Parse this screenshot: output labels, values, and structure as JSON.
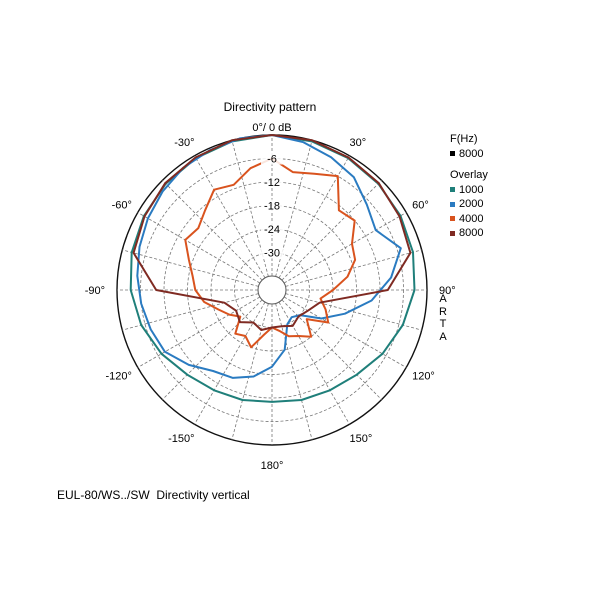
{
  "chart_data": {
    "type": "polar",
    "title": "Directivity pattern",
    "top_label": "0°/ 0 dB",
    "radial_unit": "dB",
    "radial_range": [
      -36,
      0
    ],
    "radial_ticks": [
      "-6",
      "-12",
      "-18",
      "-24",
      "-30"
    ],
    "angle_labels": [
      {
        "deg": 30,
        "text": "30°"
      },
      {
        "deg": 60,
        "text": "60°"
      },
      {
        "deg": 90,
        "text": "90°"
      },
      {
        "deg": 120,
        "text": "120°"
      },
      {
        "deg": 150,
        "text": "150°"
      },
      {
        "deg": 180,
        "text": "180°"
      },
      {
        "deg": -150,
        "text": "-150°"
      },
      {
        "deg": -120,
        "text": "-120°"
      },
      {
        "deg": -90,
        "text": "-90°"
      },
      {
        "deg": -60,
        "text": "-60°"
      },
      {
        "deg": -30,
        "text": "-30°"
      }
    ],
    "legend": {
      "freq_header": "F(Hz)",
      "freq_entry": {
        "label": "8000",
        "color": "#000000"
      },
      "overlay_header": "Overlay",
      "overlay_entries": [
        {
          "label": "1000",
          "color": "#1f7f7a"
        },
        {
          "label": "2000",
          "color": "#2a7bc1"
        },
        {
          "label": "4000",
          "color": "#d9531e"
        },
        {
          "label": "8000",
          "color": "#7f2a22"
        }
      ]
    },
    "series": [
      {
        "name": "1000",
        "color": "#1f7f7a",
        "angles": [
          0,
          15,
          30,
          45,
          60,
          75,
          90,
          105,
          120,
          135,
          150,
          165,
          180,
          195,
          210,
          225,
          240,
          255,
          270,
          285,
          300,
          315,
          330,
          345
        ],
        "values": [
          0,
          -0.3,
          -0.7,
          -1.2,
          -1.7,
          -2.3,
          -3.2,
          -5,
          -7,
          -9,
          -10,
          -10.5,
          -11,
          -10.5,
          -10,
          -9,
          -7,
          -5,
          -3.5,
          -2.5,
          -1.8,
          -1.2,
          -0.7,
          -0.3
        ]
      },
      {
        "name": "2000",
        "color": "#2a7bc1",
        "angles": [
          0,
          12,
          24,
          36,
          48,
          60,
          72,
          84,
          96,
          108,
          120,
          132,
          144,
          156,
          168,
          180,
          192,
          204,
          216,
          228,
          240,
          252,
          264,
          276,
          288,
          300,
          312,
          324,
          336,
          348
        ],
        "values": [
          0,
          -1,
          -2.5,
          -4,
          -7,
          -9,
          -5,
          -9,
          -14,
          -20,
          -25,
          -30,
          -31,
          -30,
          -24,
          -20,
          -17,
          -15,
          -14,
          -11,
          -8,
          -7,
          -6,
          -5,
          -4,
          -3,
          -2,
          -1,
          -0.5,
          0
        ]
      },
      {
        "name": "4000",
        "color": "#d9531e",
        "angles": [
          0,
          10,
          20,
          30,
          40,
          50,
          60,
          70,
          80,
          90,
          100,
          110,
          120,
          130,
          140,
          150,
          160,
          170,
          180,
          190,
          200,
          210,
          220,
          230,
          240,
          250,
          260,
          270,
          280,
          290,
          300,
          310,
          320,
          330,
          340,
          350
        ],
        "values": [
          -6,
          -9,
          -8,
          -6,
          -13,
          -12,
          -16,
          -17,
          -20,
          -24,
          -27,
          -25,
          -23,
          -28,
          -24,
          -26,
          -27,
          -29,
          -30,
          -28,
          -24,
          -26,
          -25,
          -29,
          -27,
          -25,
          -22,
          -20,
          -19,
          -17,
          -14,
          -15,
          -13,
          -10,
          -11,
          -8
        ]
      },
      {
        "name": "8000",
        "color": "#7f2a22",
        "angles": [
          0,
          15,
          30,
          45,
          60,
          75,
          90,
          105,
          120,
          135,
          150,
          165,
          180,
          195,
          210,
          225,
          240,
          255,
          270,
          285,
          300,
          315,
          330,
          345
        ],
        "values": [
          0,
          0,
          -0.5,
          -1,
          -2,
          -3,
          -10,
          -27,
          -29,
          -30,
          -29,
          -30,
          -30,
          -29,
          -30,
          -28,
          -29,
          -27,
          -10,
          -3,
          -2,
          -1,
          -0.5,
          0
        ]
      }
    ]
  },
  "side_label": [
    "A",
    "R",
    "T",
    "A"
  ],
  "caption": "EUL-80/WS../SW  Directivity vertical"
}
